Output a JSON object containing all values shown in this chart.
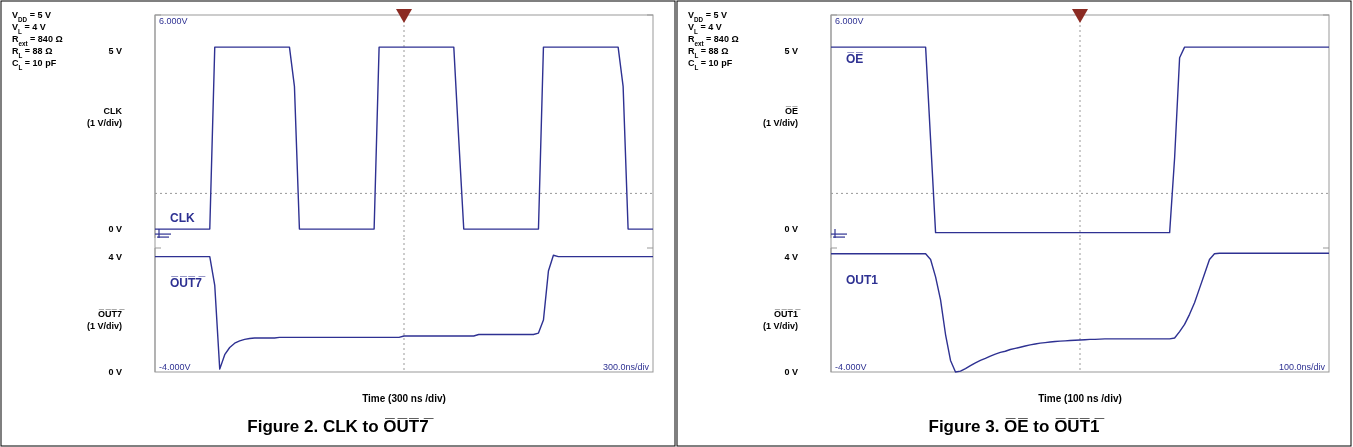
{
  "chart_data": [
    {
      "type": "line",
      "ylabel": "CLK\n(1 V/div)",
      "tick_labels": "y",
      "categories": [
        null,
        null,
        null,
        null,
        null,
        null,
        null,
        null,
        null,
        null,
        null,
        null,
        null,
        null,
        null,
        null,
        null,
        null,
        null,
        null,
        null,
        null,
        null,
        null,
        null,
        null,
        null,
        null,
        null,
        null,
        null,
        null,
        null,
        null,
        null,
        null,
        null,
        null,
        null,
        null,
        null,
        null,
        null,
        null,
        null,
        null,
        null,
        null,
        null,
        null,
        null,
        null,
        null,
        null,
        null,
        null,
        null,
        null,
        null,
        null,
        null,
        null,
        null,
        null,
        null,
        null,
        null,
        null,
        null,
        null,
        null,
        null,
        null,
        null,
        null,
        null,
        null,
        null,
        null,
        null,
        null,
        null,
        null,
        null,
        null,
        null,
        null,
        null,
        null,
        null,
        null,
        null,
        null,
        null,
        null,
        null,
        null,
        null,
        null,
        null,
        null
      ],
      "ylim": [
        -0.25,
        6
      ],
      "yticks": [
        {
          "value": 0,
          "label": "0 V"
        },
        {
          "value": 5,
          "label": "5 V"
        }
      ],
      "ref_lines": [
        {
          "axis": "y",
          "value": 1,
          "color": "#999999",
          "line_style": "dotted"
        }
      ],
      "annotations": [
        "6.000V",
        "V$_{DD}$ = 5 V",
        "V$_{L}$ = 4 V",
        "R$_{ext}$ = 840 Ω",
        "R$_{L}$ = 88 Ω",
        "C$_{L}$ = 10 pF"
      ],
      "series": [
        {
          "name": "CLK",
          "color": "#2e3192",
          "values": [
            0,
            0,
            0,
            0,
            0,
            0,
            0,
            0,
            0,
            0,
            0,
            0,
            5.1,
            5.1,
            5.1,
            5.1,
            5.1,
            5.1,
            5.1,
            5.1,
            5.1,
            5.1,
            5.1,
            5.1,
            5.1,
            5.1,
            5.1,
            5.1,
            4.0,
            0,
            0,
            0,
            0,
            0,
            0,
            0,
            0,
            0,
            0,
            0,
            0,
            0,
            0,
            0,
            0,
            5.1,
            5.1,
            5.1,
            5.1,
            5.1,
            5.1,
            5.1,
            5.1,
            5.1,
            5.1,
            5.1,
            5.1,
            5.1,
            5.1,
            5.1,
            5.1,
            2.5,
            0,
            0,
            0,
            0,
            0,
            0,
            0,
            0,
            0,
            0,
            0,
            0,
            0,
            0,
            0,
            0,
            5.1,
            5.1,
            5.1,
            5.1,
            5.1,
            5.1,
            5.1,
            5.1,
            5.1,
            5.1,
            5.1,
            5.1,
            5.1,
            5.1,
            5.1,
            5.1,
            4.0,
            0,
            0,
            0,
            0,
            0,
            0
          ]
        }
      ]
    },
    {
      "type": "line",
      "title": "Figure 2. CLK to O̅U̅T̅7̅",
      "xlabel": "Time (300 ns /div)",
      "ylabel": "O̅U̅T̅7̅\n(1 V/div)",
      "tick_labels": "y",
      "categories": [
        null,
        null,
        null,
        null,
        null,
        null,
        null,
        null,
        null,
        null,
        null,
        null,
        null,
        null,
        null,
        null,
        null,
        null,
        null,
        null,
        null,
        null,
        null,
        null,
        null,
        null,
        null,
        null,
        null,
        null,
        null,
        null,
        null,
        null,
        null,
        null,
        null,
        null,
        null,
        null,
        null,
        null,
        null,
        null,
        null,
        null,
        null,
        null,
        null,
        null,
        null,
        null,
        null,
        null,
        null,
        null,
        null,
        null,
        null,
        null,
        null,
        null,
        null,
        null,
        null,
        null,
        null,
        null,
        null,
        null,
        null,
        null,
        null,
        null,
        null,
        null,
        null,
        null,
        null,
        null,
        null,
        null,
        null,
        null,
        null,
        null,
        null,
        null,
        null,
        null,
        null,
        null,
        null,
        null,
        null,
        null,
        null,
        null,
        null,
        null,
        null
      ],
      "ylim": [
        0,
        4.3
      ],
      "yticks": [
        {
          "value": 0,
          "label": "0 V"
        },
        {
          "value": 4,
          "label": "4 V"
        }
      ],
      "annotations": [
        "-4.000V",
        "300.0ns/div"
      ],
      "series": [
        {
          "name": "O̅U̅T̅7̅",
          "color": "#2e3192",
          "values": [
            4,
            4,
            4,
            4,
            4,
            4,
            4,
            4,
            4,
            4,
            4,
            4,
            3.0,
            0.1,
            0.6,
            0.85,
            1.0,
            1.08,
            1.13,
            1.16,
            1.18,
            1.18,
            1.18,
            1.18,
            1.18,
            1.2,
            1.2,
            1.2,
            1.2,
            1.2,
            1.2,
            1.2,
            1.2,
            1.2,
            1.2,
            1.2,
            1.2,
            1.2,
            1.2,
            1.2,
            1.2,
            1.2,
            1.2,
            1.2,
            1.2,
            1.2,
            1.2,
            1.2,
            1.2,
            1.2,
            1.25,
            1.25,
            1.25,
            1.25,
            1.25,
            1.25,
            1.25,
            1.25,
            1.25,
            1.25,
            1.25,
            1.25,
            1.25,
            1.25,
            1.25,
            1.3,
            1.3,
            1.3,
            1.3,
            1.3,
            1.3,
            1.3,
            1.3,
            1.3,
            1.3,
            1.3,
            1.3,
            1.35,
            1.8,
            3.5,
            4.05,
            4,
            4,
            4,
            4,
            4,
            4,
            4,
            4,
            4,
            4,
            4,
            4,
            4,
            4,
            4,
            4,
            4,
            4,
            4,
            4
          ]
        }
      ]
    },
    {
      "type": "line",
      "ylabel": "O̅E̅\n(1 V/div)",
      "tick_labels": "y",
      "categories": [
        null,
        null,
        null,
        null,
        null,
        null,
        null,
        null,
        null,
        null,
        null,
        null,
        null,
        null,
        null,
        null,
        null,
        null,
        null,
        null,
        null,
        null,
        null,
        null,
        null,
        null,
        null,
        null,
        null,
        null,
        null,
        null,
        null,
        null,
        null,
        null,
        null,
        null,
        null,
        null,
        null,
        null,
        null,
        null,
        null,
        null,
        null,
        null,
        null,
        null,
        null,
        null,
        null,
        null,
        null,
        null,
        null,
        null,
        null,
        null,
        null,
        null,
        null,
        null,
        null,
        null,
        null,
        null,
        null,
        null,
        null,
        null,
        null,
        null,
        null,
        null,
        null,
        null,
        null,
        null,
        null,
        null,
        null,
        null,
        null,
        null,
        null,
        null,
        null,
        null,
        null,
        null,
        null,
        null,
        null,
        null,
        null,
        null,
        null,
        null,
        null
      ],
      "ylim": [
        -0.25,
        6
      ],
      "yticks": [
        {
          "value": 0,
          "label": "0 V"
        },
        {
          "value": 5,
          "label": "5 V"
        }
      ],
      "ref_lines": [
        {
          "axis": "y",
          "value": 1,
          "color": "#999999",
          "line_style": "dotted"
        }
      ],
      "annotations": [
        "6.000V",
        "V$_{DD}$ = 5 V",
        "V$_{L}$ = 4 V",
        "R$_{ext}$ = 840 Ω",
        "R$_{L}$ = 88 Ω",
        "C$_{L}$ = 10 pF"
      ],
      "series": [
        {
          "name": "O̅E̅",
          "color": "#2e3192",
          "values": [
            5.1,
            5.1,
            5.1,
            5.1,
            5.1,
            5.1,
            5.1,
            5.1,
            5.1,
            5.1,
            5.1,
            5.1,
            5.1,
            5.1,
            5.1,
            5.1,
            5.1,
            5.1,
            5.1,
            5.1,
            2.5,
            -0.1,
            -0.1,
            -0.1,
            -0.1,
            -0.1,
            -0.1,
            -0.1,
            -0.1,
            -0.1,
            -0.1,
            -0.1,
            -0.1,
            -0.1,
            -0.1,
            -0.1,
            -0.1,
            -0.1,
            -0.1,
            -0.1,
            -0.1,
            -0.1,
            -0.1,
            -0.1,
            -0.1,
            -0.1,
            -0.1,
            -0.1,
            -0.1,
            -0.1,
            -0.1,
            -0.1,
            -0.1,
            -0.1,
            -0.1,
            -0.1,
            -0.1,
            -0.1,
            -0.1,
            -0.1,
            -0.1,
            -0.1,
            -0.1,
            -0.1,
            -0.1,
            -0.1,
            -0.1,
            -0.1,
            -0.1,
            2.0,
            4.8,
            5.1,
            5.1,
            5.1,
            5.1,
            5.1,
            5.1,
            5.1,
            5.1,
            5.1,
            5.1,
            5.1,
            5.1,
            5.1,
            5.1,
            5.1,
            5.1,
            5.1,
            5.1,
            5.1,
            5.1,
            5.1,
            5.1,
            5.1,
            5.1,
            5.1,
            5.1,
            5.1,
            5.1,
            5.1,
            5.1
          ]
        }
      ]
    },
    {
      "type": "line",
      "title": "Figure 3.  O̅E̅ to O̅U̅T̅1̅",
      "xlabel": "Time (100 ns /div)",
      "ylabel": "O̅U̅T̅1̅\n(1 V/div)",
      "tick_labels": "y",
      "categories": [
        null,
        null,
        null,
        null,
        null,
        null,
        null,
        null,
        null,
        null,
        null,
        null,
        null,
        null,
        null,
        null,
        null,
        null,
        null,
        null,
        null,
        null,
        null,
        null,
        null,
        null,
        null,
        null,
        null,
        null,
        null,
        null,
        null,
        null,
        null,
        null,
        null,
        null,
        null,
        null,
        null,
        null,
        null,
        null,
        null,
        null,
        null,
        null,
        null,
        null,
        null,
        null,
        null,
        null,
        null,
        null,
        null,
        null,
        null,
        null,
        null,
        null,
        null,
        null,
        null,
        null,
        null,
        null,
        null,
        null,
        null,
        null,
        null,
        null,
        null,
        null,
        null,
        null,
        null,
        null,
        null,
        null,
        null,
        null,
        null,
        null,
        null,
        null,
        null,
        null,
        null,
        null,
        null,
        null,
        null,
        null,
        null,
        null,
        null,
        null,
        null
      ],
      "ylim": [
        0,
        4.3
      ],
      "yticks": [
        {
          "value": 0,
          "label": "0 V"
        },
        {
          "value": 4,
          "label": "4 V"
        }
      ],
      "annotations": [
        "-4.000V",
        "100.0ns/div"
      ],
      "series": [
        {
          "name": "OUT1",
          "color": "#2e3192",
          "values": [
            4.1,
            4.1,
            4.1,
            4.1,
            4.1,
            4.1,
            4.1,
            4.1,
            4.1,
            4.1,
            4.1,
            4.1,
            4.1,
            4.1,
            4.1,
            4.1,
            4.1,
            4.1,
            4.1,
            4.1,
            3.9,
            3.3,
            2.5,
            1.3,
            0.4,
            0.0,
            0.03,
            0.12,
            0.22,
            0.32,
            0.4,
            0.47,
            0.55,
            0.62,
            0.68,
            0.72,
            0.78,
            0.82,
            0.86,
            0.9,
            0.94,
            0.97,
            1.0,
            1.02,
            1.04,
            1.06,
            1.07,
            1.08,
            1.09,
            1.1,
            1.11,
            1.12,
            1.13,
            1.13,
            1.14,
            1.15,
            1.15,
            1.15,
            1.15,
            1.15,
            1.15,
            1.15,
            1.15,
            1.15,
            1.15,
            1.15,
            1.15,
            1.15,
            1.15,
            1.18,
            1.4,
            1.65,
            2.0,
            2.4,
            2.9,
            3.4,
            3.9,
            4.1,
            4.12,
            4.12,
            4.12,
            4.12,
            4.12,
            4.12,
            4.12,
            4.12,
            4.12,
            4.12,
            4.12,
            4.12,
            4.12,
            4.12,
            4.12,
            4.12,
            4.12,
            4.12,
            4.12,
            4.12,
            4.12,
            4.12,
            4.12
          ]
        }
      ]
    }
  ]
}
